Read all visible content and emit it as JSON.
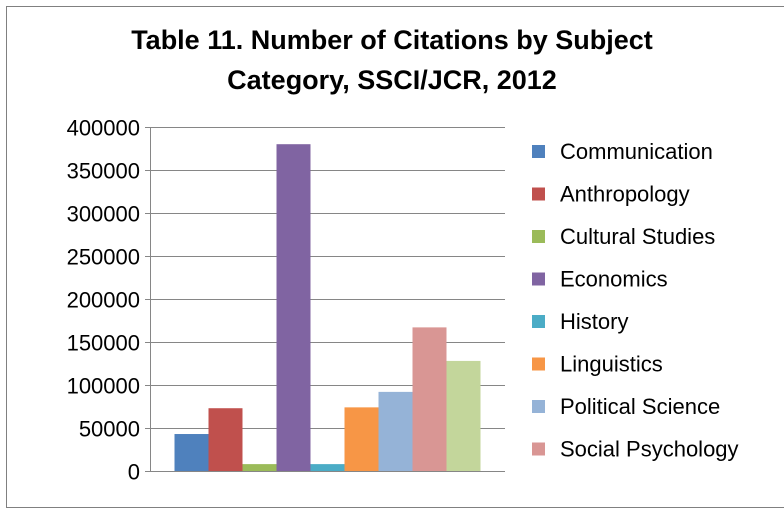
{
  "chart_data": {
    "type": "bar",
    "title": "Table 11. Number of Citations by Subject Category, SSCI/JCR, 2012",
    "title_lines": [
      "Table 11. Number of Citations by Subject",
      "Category, SSCI/JCR, 2012"
    ],
    "xlabel": "",
    "ylabel": "",
    "ylim": [
      0,
      400000
    ],
    "yticks": [
      0,
      50000,
      100000,
      150000,
      200000,
      250000,
      300000,
      350000,
      400000
    ],
    "grid": true,
    "legend_position": "right",
    "series": [
      {
        "name": "Communication",
        "value": 43000,
        "color": "#4F81BD"
      },
      {
        "name": "Anthropology",
        "value": 73000,
        "color": "#C0504D"
      },
      {
        "name": "Cultural Studies",
        "value": 8000,
        "color": "#9BBB59"
      },
      {
        "name": "Economics",
        "value": 380000,
        "color": "#8064A2"
      },
      {
        "name": "History",
        "value": 8000,
        "color": "#4BACC6"
      },
      {
        "name": "Linguistics",
        "value": 74000,
        "color": "#F79646"
      },
      {
        "name": "Political Science",
        "value": 92000,
        "color": "#95B3D7"
      },
      {
        "name": "Social Psychology",
        "value": 167000,
        "color": "#D99694"
      },
      {
        "value": 128000,
        "color": "#C3D69B"
      }
    ]
  }
}
